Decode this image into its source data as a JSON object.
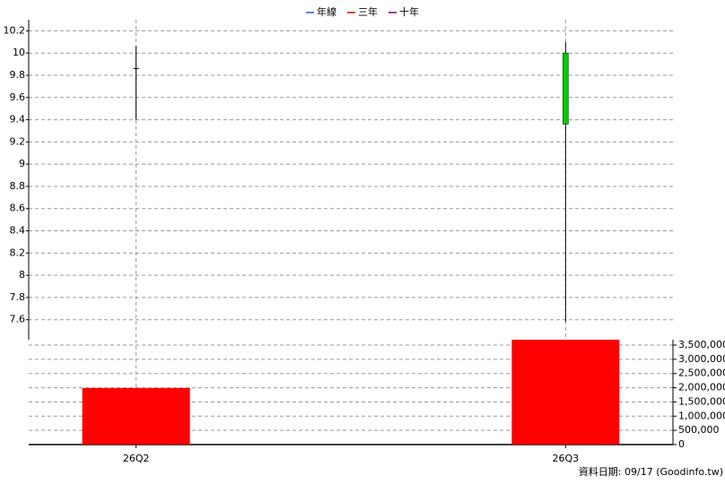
{
  "chart_data": {
    "type": "candlestick",
    "legend": [
      {
        "name": "年線",
        "color": "#1f5fd0"
      },
      {
        "name": "三年",
        "color": "#e00000"
      },
      {
        "name": "十年",
        "color": "#800060"
      }
    ],
    "categories": [
      "26Q2",
      null,
      "26Q3"
    ],
    "open": [
      9.86,
      null,
      10.0
    ],
    "high": [
      10.06,
      null,
      10.1
    ],
    "low": [
      9.4,
      null,
      7.58
    ],
    "close": [
      9.86,
      null,
      9.36
    ],
    "volume": [
      1990000,
      null,
      3690000
    ],
    "up_color": "#ff0000",
    "down_color": "#00cc00",
    "flat_color": "#000000",
    "volume_color": "#ff0000",
    "ylim": [
      7.42,
      10.3
    ],
    "yticks": [
      7.6,
      7.8,
      8,
      8.2,
      8.4,
      8.6,
      8.8,
      9,
      9.2,
      9.4,
      9.6,
      9.8,
      10,
      10.2
    ],
    "y2lim": [
      0,
      3690000
    ],
    "y2ticks": [
      0,
      {
        "value": 500000,
        "label": "500,000"
      },
      {
        "value": 1000000,
        "label": "1,000,000"
      },
      {
        "value": 1500000,
        "label": "1,500,000"
      },
      {
        "value": 2000000,
        "label": "2,000,000"
      },
      {
        "value": 2500000,
        "label": "2,500,000"
      },
      {
        "value": 3000000,
        "label": "3,000,000"
      },
      {
        "value": 3500000,
        "label": "3,500,000"
      }
    ],
    "grid": true,
    "source": "資料日期: 09/17  (Goodinfo.tw)"
  }
}
